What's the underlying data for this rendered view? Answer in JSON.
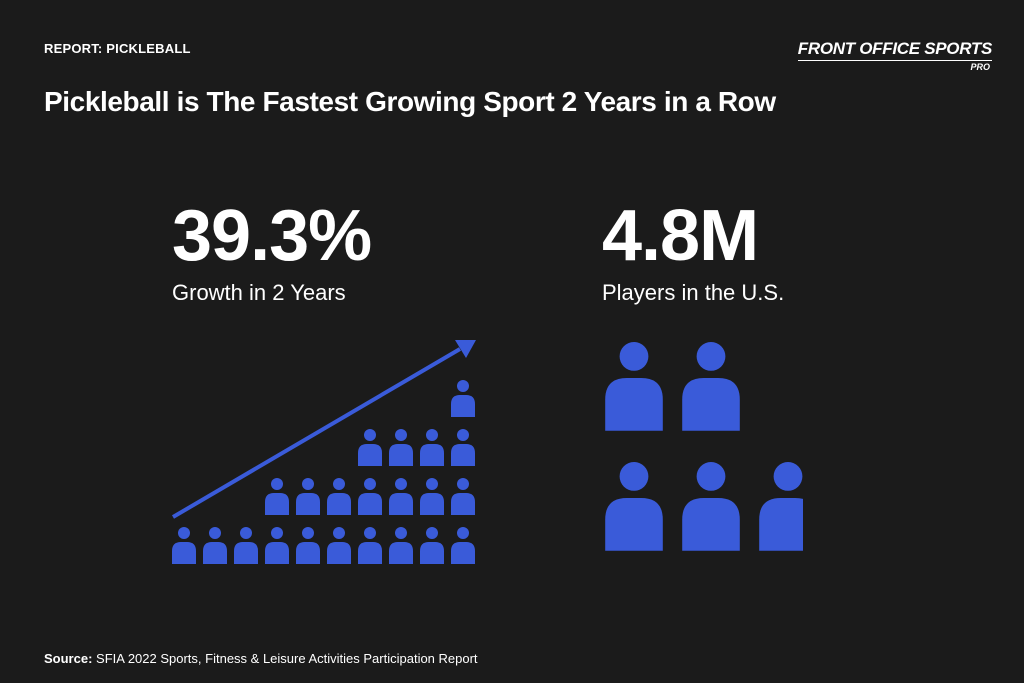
{
  "header": {
    "eyebrow": "REPORT: PICKLEBALL",
    "brand_name": "FRONT OFFICE SPORTS",
    "brand_sub": "PRO"
  },
  "headline": "Pickleball is The Fastest Growing Sport 2 Years in a Row",
  "stats": [
    {
      "value": "39.3%",
      "label": "Growth in 2 Years"
    },
    {
      "value": "4.8M",
      "label": "Players in the U.S."
    }
  ],
  "colors": {
    "background": "#1b1b1b",
    "accent": "#3a5bd9",
    "text": "#ffffff"
  },
  "icons": {
    "growth": "person-icon",
    "players": "person-icon"
  },
  "source": {
    "label": "Source:",
    "text": "SFIA 2022 Sports, Fitness & Leisure Activities Participation Report"
  }
}
